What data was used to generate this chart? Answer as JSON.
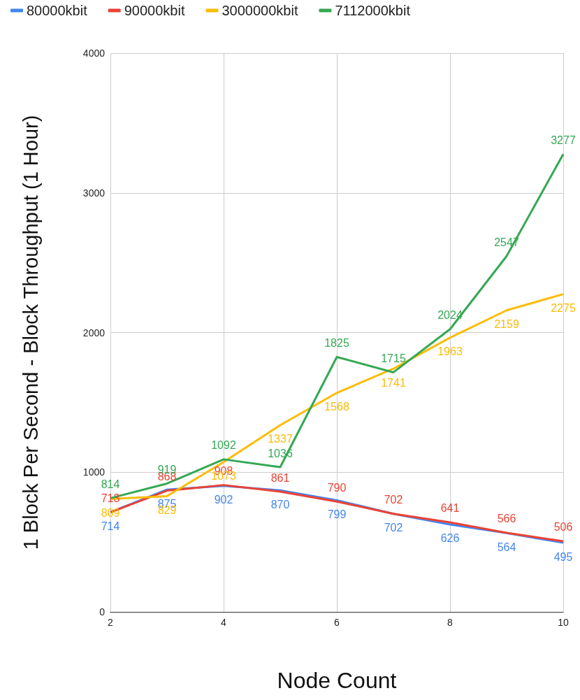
{
  "chart_data": {
    "type": "line",
    "xlabel": "Node Count",
    "ylabel": "1 Block Per Second - Block Throughput (1 Hour)",
    "x": [
      2,
      3,
      4,
      5,
      6,
      7,
      8,
      9,
      10
    ],
    "series": [
      {
        "name": "80000kbit",
        "color": "#4285f4",
        "values": [
          714,
          875,
          902,
          870,
          799,
          702,
          626,
          564,
          495
        ]
      },
      {
        "name": "90000kbit",
        "color": "#ea4335",
        "values": [
          713,
          868,
          908,
          861,
          790,
          702,
          641,
          566,
          506
        ]
      },
      {
        "name": "3000000kbit",
        "color": "#fbbc04",
        "values": [
          809,
          829,
          1073,
          1337,
          1568,
          1741,
          1963,
          2159,
          2275
        ]
      },
      {
        "name": "7112000kbit",
        "color": "#34a853",
        "values": [
          814,
          919,
          1092,
          1036,
          1825,
          1715,
          2024,
          2547,
          3277
        ]
      }
    ],
    "xlim": [
      2,
      10
    ],
    "xticks": [
      2,
      4,
      6,
      8,
      10
    ],
    "ylim": [
      0,
      4000
    ],
    "yticks": [
      0,
      1000,
      2000,
      3000,
      4000
    ],
    "grid": true,
    "legend": "top left",
    "marker": "none",
    "line_style": "solid",
    "data_labels": true
  }
}
